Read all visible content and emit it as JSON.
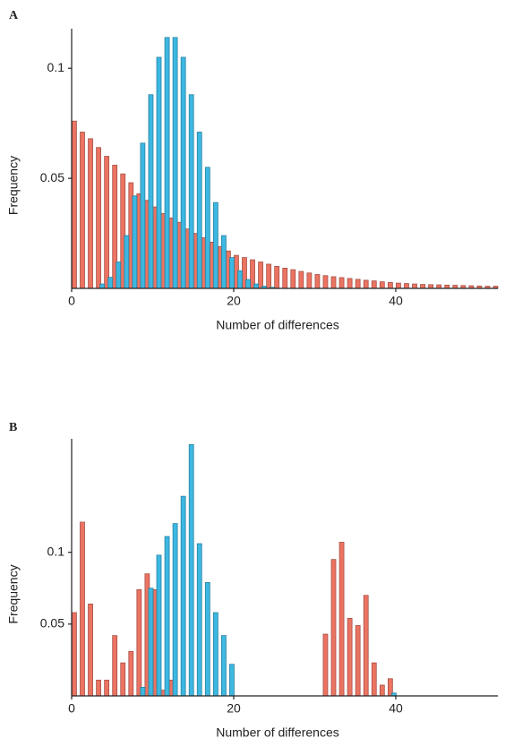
{
  "chart_data": [
    {
      "type": "bar",
      "title": "A",
      "x_label": "Number of differences",
      "y_label": "Frequency",
      "xlim": [
        0,
        52.6
      ],
      "ylim": [
        0,
        0.118
      ],
      "xticks": [
        0,
        20,
        40
      ],
      "yticks": [
        0.05,
        0.1
      ],
      "series": [
        {
          "color": "#ec7362",
          "x": [
            0,
            1,
            2,
            3,
            4,
            5,
            6,
            7,
            8,
            9,
            10,
            11,
            12,
            13,
            14,
            15,
            16,
            17,
            18,
            19,
            20,
            21,
            22,
            23,
            24,
            25,
            26,
            27,
            28,
            29,
            30,
            31,
            32,
            33,
            34,
            35,
            36,
            37,
            38,
            39,
            40,
            41,
            42,
            43,
            44,
            45,
            46,
            47,
            48,
            49,
            50,
            51,
            52
          ],
          "values": [
            0.076,
            0.071,
            0.068,
            0.064,
            0.06,
            0.056,
            0.052,
            0.048,
            0.043,
            0.04,
            0.037,
            0.034,
            0.032,
            0.03,
            0.027,
            0.025,
            0.023,
            0.021,
            0.019,
            0.017,
            0.015,
            0.014,
            0.013,
            0.012,
            0.011,
            0.01,
            0.0092,
            0.0085,
            0.0077,
            0.007,
            0.0063,
            0.0058,
            0.0053,
            0.0049,
            0.0045,
            0.0041,
            0.0037,
            0.0034,
            0.003,
            0.0027,
            0.0024,
            0.0022,
            0.002,
            0.0018,
            0.0017,
            0.0016,
            0.0015,
            0.0014,
            0.0013,
            0.0012,
            0.0011,
            0.001,
            0.001
          ]
        },
        {
          "color": "#3cb8e2",
          "x": [
            4,
            5,
            6,
            7,
            8,
            9,
            10,
            11,
            12,
            13,
            14,
            15,
            16,
            17,
            18,
            19,
            20,
            21,
            22,
            23,
            24,
            25
          ],
          "values": [
            0.002,
            0.005,
            0.012,
            0.024,
            0.042,
            0.066,
            0.088,
            0.105,
            0.114,
            0.114,
            0.105,
            0.088,
            0.071,
            0.055,
            0.039,
            0.024,
            0.014,
            0.008,
            0.004,
            0.002,
            0.001,
            0.0005
          ]
        }
      ]
    },
    {
      "type": "bar",
      "title": "B",
      "x_label": "Number of differences",
      "y_label": "Frequency",
      "xlim": [
        0,
        52.6
      ],
      "ylim": [
        0,
        0.179
      ],
      "xticks": [
        0,
        20,
        40
      ],
      "yticks": [
        0.05,
        0.1
      ],
      "series": [
        {
          "color": "#ec7362",
          "x": [
            0,
            1,
            2,
            3,
            4,
            5,
            6,
            7,
            8,
            9,
            10,
            11,
            12,
            31,
            32,
            33,
            34,
            35,
            36,
            37,
            38,
            39
          ],
          "values": [
            0.058,
            0.121,
            0.064,
            0.011,
            0.011,
            0.042,
            0.023,
            0.031,
            0.074,
            0.085,
            0.074,
            0.004,
            0.011,
            0.043,
            0.095,
            0.107,
            0.054,
            0.049,
            0.07,
            0.023,
            0.0075,
            0.012
          ]
        },
        {
          "color": "#3cb8e2",
          "x": [
            9,
            10,
            11,
            12,
            13,
            14,
            15,
            16,
            17,
            18,
            19,
            20,
            40
          ],
          "values": [
            0.006,
            0.075,
            0.098,
            0.111,
            0.12,
            0.139,
            0.175,
            0.106,
            0.079,
            0.058,
            0.042,
            0.022,
            0.002
          ]
        }
      ]
    }
  ]
}
